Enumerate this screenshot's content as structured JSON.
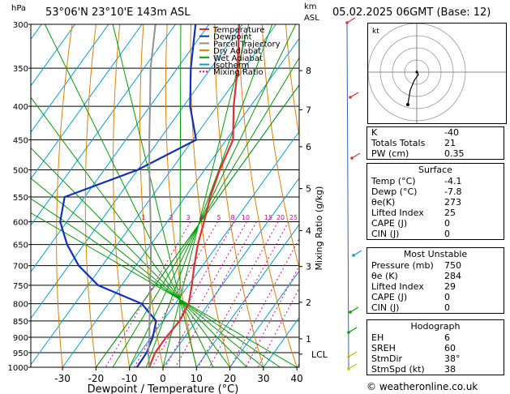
{
  "header": {
    "hpa_label": "hPa",
    "location": "53°06'N  23°10'E  143m  ASL",
    "km_label": "km",
    "asl_label": "ASL",
    "datetime": "05.02.2025  06GMT  (Base: 12)"
  },
  "legend": [
    {
      "label": "Temperature",
      "color": "#e03030"
    },
    {
      "label": "Dewpoint",
      "color": "#1030c0"
    },
    {
      "label": "Parcel Trajectory",
      "color": "#909090"
    },
    {
      "label": "Dry Adiabat",
      "color": "#e08000"
    },
    {
      "label": "Wet Adiabat",
      "color": "#00a000"
    },
    {
      "label": "Isotherm",
      "color": "#00a0e0"
    },
    {
      "label": "Mixing Ratio",
      "color": "#e000a0"
    }
  ],
  "chart_data": {
    "type": "line",
    "title": "",
    "xlabel": "Dewpoint / Temperature (°C)",
    "ylabel": "hPa",
    "y2label": "Mixing Ratio (g/kg)",
    "xlim": [
      -35,
      40
    ],
    "ylim": [
      1000,
      300
    ],
    "x_ticks": [
      -30,
      -20,
      -10,
      0,
      10,
      20,
      30,
      40
    ],
    "pressure_levels": [
      300,
      350,
      400,
      450,
      500,
      550,
      600,
      650,
      700,
      750,
      800,
      850,
      900,
      950,
      1000
    ],
    "km_ticks": [
      {
        "label": "8",
        "p": 353
      },
      {
        "label": "7",
        "p": 405
      },
      {
        "label": "6",
        "p": 461
      },
      {
        "label": "5",
        "p": 534
      },
      {
        "label": "4",
        "p": 619
      },
      {
        "label": "3",
        "p": 702
      },
      {
        "label": "2",
        "p": 796
      },
      {
        "label": "1",
        "p": 905
      },
      {
        "label": "LCL",
        "p": 955
      }
    ],
    "mixing_ratio_labels": [
      "1",
      "2",
      "3",
      "4",
      "5",
      "8",
      "10",
      "15",
      "20",
      "25"
    ],
    "series": [
      {
        "name": "Temperature",
        "points": [
          {
            "p": 1000,
            "t": -4.1
          },
          {
            "p": 950,
            "t": -5.5
          },
          {
            "p": 900,
            "t": -5.5
          },
          {
            "p": 850,
            "t": -5.0
          },
          {
            "p": 800,
            "t": -6.0
          },
          {
            "p": 750,
            "t": -9.0
          },
          {
            "p": 700,
            "t": -12.5
          },
          {
            "p": 650,
            "t": -16.0
          },
          {
            "p": 600,
            "t": -19.0
          },
          {
            "p": 550,
            "t": -22.5
          },
          {
            "p": 500,
            "t": -25.5
          },
          {
            "p": 450,
            "t": -28.0
          },
          {
            "p": 400,
            "t": -35.0
          },
          {
            "p": 350,
            "t": -42.0
          },
          {
            "p": 300,
            "t": -51.0
          }
        ]
      },
      {
        "name": "Dewpoint",
        "points": [
          {
            "p": 1000,
            "t": -7.8
          },
          {
            "p": 950,
            "t": -8.0
          },
          {
            "p": 900,
            "t": -9.5
          },
          {
            "p": 850,
            "t": -12.0
          },
          {
            "p": 800,
            "t": -20.0
          },
          {
            "p": 750,
            "t": -37.0
          },
          {
            "p": 700,
            "t": -47.0
          },
          {
            "p": 650,
            "t": -55.0
          },
          {
            "p": 600,
            "t": -62.0
          },
          {
            "p": 550,
            "t": -66.0
          },
          {
            "p": 500,
            "t": -50.0
          },
          {
            "p": 450,
            "t": -39.0
          },
          {
            "p": 400,
            "t": -48.0
          },
          {
            "p": 350,
            "t": -56.0
          },
          {
            "p": 300,
            "t": -64.0
          }
        ]
      },
      {
        "name": "Parcel Trajectory",
        "points": [
          {
            "p": 1000,
            "t": -4.1
          },
          {
            "p": 950,
            "t": -7.5
          },
          {
            "p": 900,
            "t": -10.5
          },
          {
            "p": 850,
            "t": -14.0
          },
          {
            "p": 800,
            "t": -17.5
          },
          {
            "p": 750,
            "t": -21.5
          },
          {
            "p": 700,
            "t": -25.5
          },
          {
            "p": 650,
            "t": -30.0
          },
          {
            "p": 600,
            "t": -35.0
          },
          {
            "p": 550,
            "t": -40.5
          },
          {
            "p": 500,
            "t": -46.5
          },
          {
            "p": 450,
            "t": -53.0
          },
          {
            "p": 400,
            "t": -60.0
          },
          {
            "p": 350,
            "t": -68.0
          },
          {
            "p": 300,
            "t": -76.0
          }
        ]
      }
    ]
  },
  "indices": [
    {
      "key": "K",
      "value": "-40"
    },
    {
      "key": "Totals Totals",
      "value": "21"
    },
    {
      "key": "PW (cm)",
      "value": "0.35"
    }
  ],
  "surface": {
    "title": "Surface",
    "rows": [
      {
        "key": "Temp (°C)",
        "value": "-4.1"
      },
      {
        "key": "Dewp (°C)",
        "value": "-7.8"
      },
      {
        "key": "θe(K)",
        "value": "273"
      },
      {
        "key": "Lifted Index",
        "value": "25"
      },
      {
        "key": "CAPE (J)",
        "value": "0"
      },
      {
        "key": "CIN (J)",
        "value": "0"
      }
    ]
  },
  "most_unstable": {
    "title": "Most Unstable",
    "rows": [
      {
        "key": "Pressure (mb)",
        "value": "750"
      },
      {
        "key": "θe (K)",
        "value": "284"
      },
      {
        "key": "Lifted Index",
        "value": "29"
      },
      {
        "key": "CAPE (J)",
        "value": "0"
      },
      {
        "key": "CIN (J)",
        "value": "0"
      }
    ]
  },
  "hodograph": {
    "title": "Hodograph",
    "label": "kt",
    "rows": [
      {
        "key": "EH",
        "value": "6"
      },
      {
        "key": "SREH",
        "value": "60"
      },
      {
        "key": "StmDir",
        "value": "38°"
      },
      {
        "key": "StmSpd (kt)",
        "value": "38"
      }
    ]
  },
  "footer": {
    "copyright": "© weatheronline.co.uk"
  }
}
